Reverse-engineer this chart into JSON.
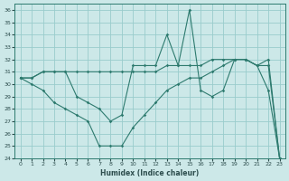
{
  "xlabel": "Humidex (Indice chaleur)",
  "bg_color": "#cce8e8",
  "grid_color": "#99cccc",
  "line_color": "#2d7a6e",
  "xlim": [
    -0.5,
    23.5
  ],
  "ylim": [
    24,
    36.5
  ],
  "yticks": [
    24,
    25,
    26,
    27,
    28,
    29,
    30,
    31,
    32,
    33,
    34,
    35,
    36
  ],
  "xticks": [
    0,
    1,
    2,
    3,
    4,
    5,
    6,
    7,
    8,
    9,
    10,
    11,
    12,
    13,
    14,
    15,
    16,
    17,
    18,
    19,
    20,
    21,
    22,
    23
  ],
  "series": [
    [
      30.5,
      30.5,
      31.0,
      31.0,
      31.0,
      31.0,
      31.0,
      31.0,
      31.0,
      31.0,
      31.0,
      31.0,
      31.0,
      31.5,
      31.5,
      31.5,
      31.5,
      32.0,
      32.0,
      32.0,
      32.0,
      31.5,
      32.0,
      24.0
    ],
    [
      30.5,
      30.5,
      31.0,
      31.0,
      31.0,
      29.0,
      28.5,
      28.0,
      27.0,
      27.5,
      31.5,
      31.5,
      31.5,
      34.0,
      31.5,
      36.0,
      29.5,
      29.0,
      29.5,
      32.0,
      32.0,
      31.5,
      31.5,
      24.0
    ],
    [
      30.5,
      30.0,
      29.5,
      28.5,
      28.0,
      27.5,
      27.0,
      25.0,
      25.0,
      25.0,
      26.5,
      27.5,
      28.5,
      29.5,
      30.0,
      30.5,
      30.5,
      31.0,
      31.5,
      32.0,
      32.0,
      31.5,
      29.5,
      24.0
    ]
  ]
}
